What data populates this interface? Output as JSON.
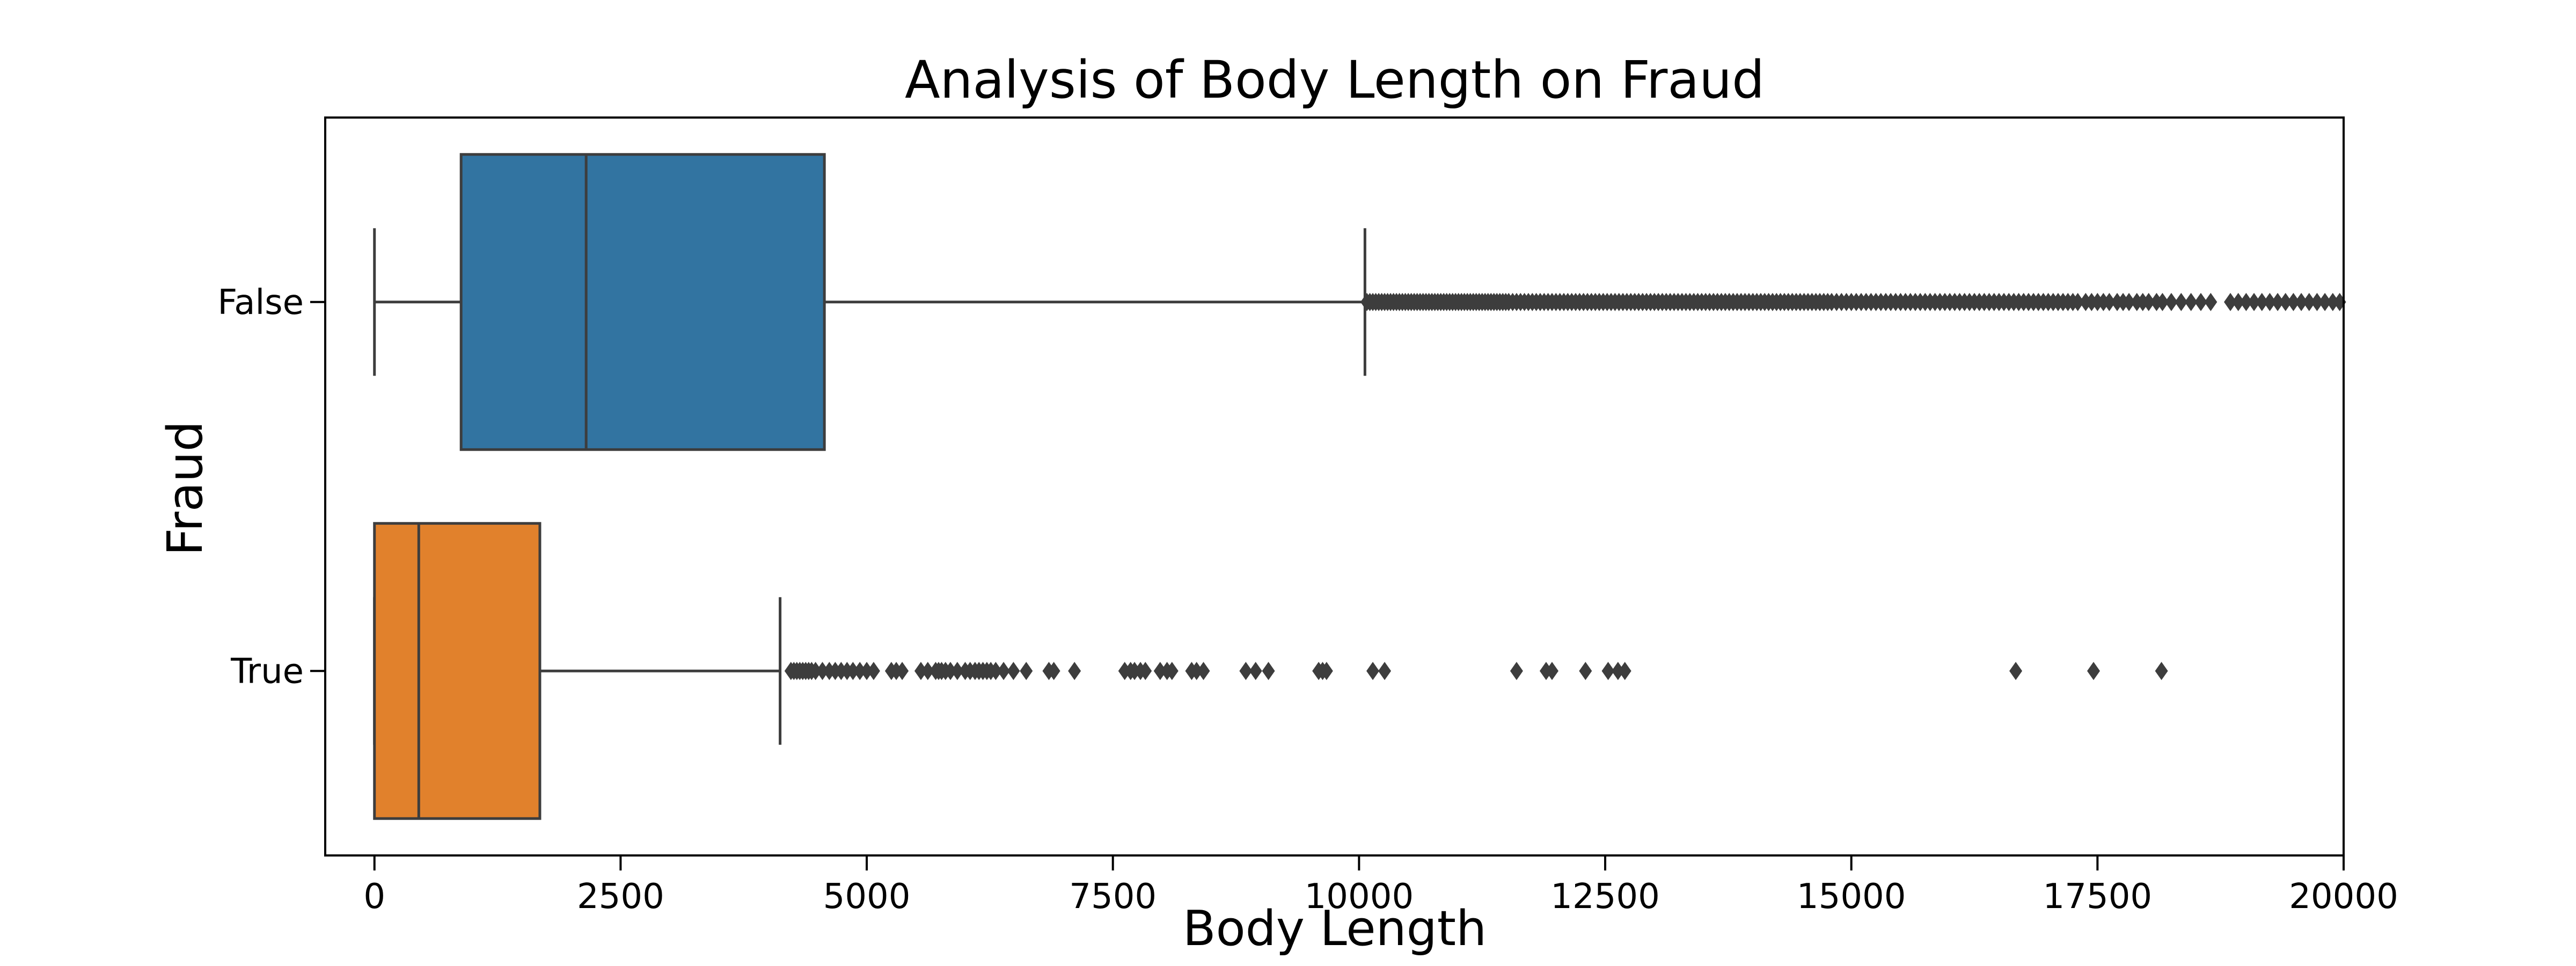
{
  "chart_data": {
    "type": "boxplot",
    "orientation": "horizontal",
    "title": "Analysis of Body Length on Fraud",
    "xlabel": "Body Length",
    "ylabel": "Fraud",
    "xlim": [
      -500,
      20000
    ],
    "xticks": [
      0,
      2500,
      5000,
      7500,
      10000,
      12500,
      15000,
      17500,
      20000
    ],
    "categories": [
      "False",
      "True"
    ],
    "grid": false,
    "legend": "none",
    "series": [
      {
        "category": "False",
        "color": "#3274a1",
        "whisker_low": 0,
        "q1": 880,
        "median": 2150,
        "q3": 4570,
        "whisker_high": 10060,
        "outliers": [
          10080,
          10110,
          10140,
          10170,
          10200,
          10230,
          10260,
          10290,
          10320,
          10350,
          10380,
          10410,
          10440,
          10470,
          10500,
          10530,
          10560,
          10590,
          10620,
          10650,
          10680,
          10710,
          10740,
          10770,
          10800,
          10830,
          10860,
          10890,
          10920,
          10950,
          10980,
          11010,
          11040,
          11070,
          11100,
          11130,
          11160,
          11190,
          11220,
          11250,
          11280,
          11310,
          11340,
          11370,
          11400,
          11430,
          11460,
          11490,
          11520,
          11560,
          11600,
          11640,
          11680,
          11720,
          11760,
          11800,
          11840,
          11880,
          11920,
          11960,
          12000,
          12040,
          12080,
          12120,
          12160,
          12200,
          12240,
          12280,
          12320,
          12360,
          12400,
          12440,
          12480,
          12520,
          12560,
          12600,
          12640,
          12680,
          12720,
          12760,
          12800,
          12840,
          12880,
          12920,
          12960,
          13000,
          13040,
          13080,
          13120,
          13160,
          13200,
          13240,
          13280,
          13320,
          13360,
          13400,
          13440,
          13480,
          13520,
          13560,
          13600,
          13640,
          13680,
          13720,
          13760,
          13800,
          13840,
          13880,
          13920,
          13960,
          14000,
          14040,
          14080,
          14120,
          14160,
          14200,
          14240,
          14280,
          14320,
          14360,
          14400,
          14440,
          14480,
          14520,
          14560,
          14600,
          14640,
          14680,
          14720,
          14760,
          14800,
          14850,
          14900,
          14950,
          15000,
          15050,
          15100,
          15150,
          15200,
          15250,
          15300,
          15350,
          15400,
          15450,
          15500,
          15550,
          15600,
          15650,
          15700,
          15750,
          15800,
          15850,
          15900,
          15950,
          16000,
          16050,
          16100,
          16150,
          16200,
          16250,
          16300,
          16350,
          16400,
          16450,
          16500,
          16550,
          16600,
          16650,
          16700,
          16750,
          16800,
          16850,
          16900,
          16950,
          17000,
          17050,
          17100,
          17150,
          17200,
          17250,
          17300,
          17380,
          17440,
          17500,
          17560,
          17620,
          17700,
          17760,
          17820,
          17900,
          17960,
          18020,
          18100,
          18160,
          18250,
          18350,
          18450,
          18550,
          18650,
          18850,
          18930,
          19010,
          19090,
          19170,
          19250,
          19330,
          19410,
          19490,
          19570,
          19650,
          19730,
          19810,
          19890,
          19960
        ]
      },
      {
        "category": "True",
        "color": "#e1812c",
        "whisker_low": 0,
        "q1": 0,
        "median": 450,
        "q3": 1680,
        "whisker_high": 4120,
        "outliers": [
          4230,
          4260,
          4290,
          4320,
          4350,
          4380,
          4410,
          4440,
          4480,
          4550,
          4620,
          4680,
          4740,
          4800,
          4860,
          4930,
          5000,
          5070,
          5250,
          5300,
          5360,
          5550,
          5620,
          5700,
          5730,
          5760,
          5800,
          5850,
          5920,
          6000,
          6050,
          6100,
          6140,
          6180,
          6220,
          6260,
          6310,
          6390,
          6490,
          6620,
          6850,
          6900,
          7110,
          7620,
          7680,
          7720,
          7780,
          7830,
          7980,
          8050,
          8100,
          8300,
          8350,
          8420,
          8850,
          8950,
          9080,
          9590,
          9630,
          9670,
          10140,
          10260,
          11600,
          11900,
          11960,
          12300,
          12530,
          12630,
          12700,
          16670,
          17460,
          18150
        ]
      }
    ]
  }
}
